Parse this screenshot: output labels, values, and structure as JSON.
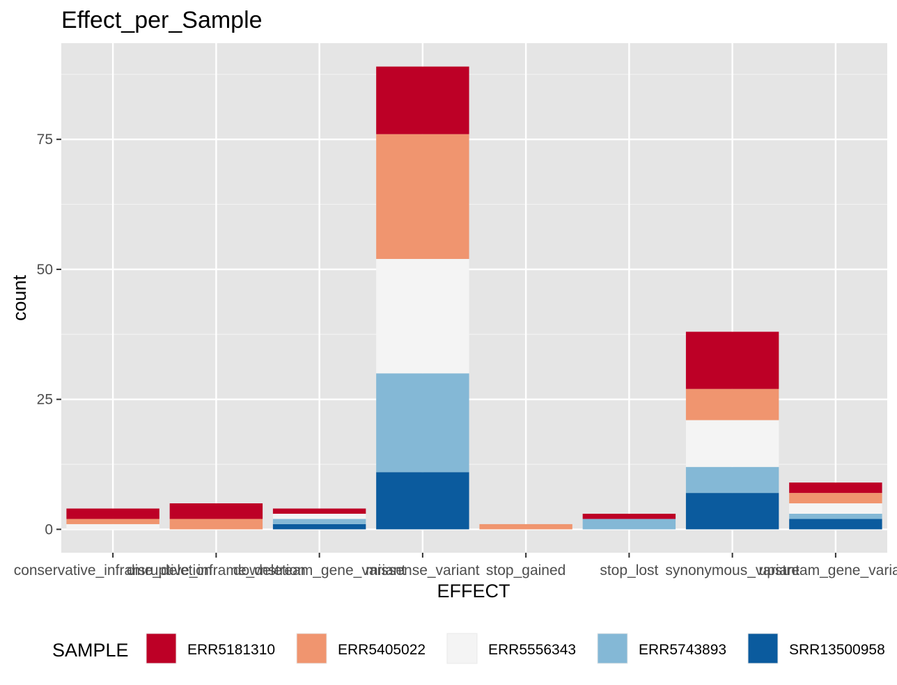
{
  "chart_data": {
    "type": "bar",
    "stacked": true,
    "title": "Effect_per_Sample",
    "xlabel": "EFFECT",
    "ylabel": "count",
    "ylim": [
      -4.5,
      93.5
    ],
    "yticks": [
      0,
      25,
      50,
      75
    ],
    "grid": true,
    "legend_position": "bottom",
    "legend_title": "SAMPLE",
    "categories": [
      "conservative_inframe_deletion",
      "disruptive_inframe_deletion",
      "downstream_gene_variant",
      "missense_variant",
      "stop_gained",
      "stop_lost",
      "synonymous_variant",
      "upstream_gene_variant"
    ],
    "series": [
      {
        "name": "ERR5181310",
        "color": "#bd0026",
        "values": [
          2,
          3,
          1,
          13,
          0,
          1,
          11,
          2
        ]
      },
      {
        "name": "ERR5405022",
        "color": "#f0956f",
        "values": [
          1,
          2,
          0,
          24,
          1,
          0,
          6,
          2
        ]
      },
      {
        "name": "ERR5556343",
        "color": "#f4f4f4",
        "values": [
          1,
          0,
          1,
          22,
          0,
          0,
          9,
          2
        ]
      },
      {
        "name": "ERR5743893",
        "color": "#84b8d6",
        "values": [
          0,
          0,
          1,
          19,
          0,
          2,
          5,
          1
        ]
      },
      {
        "name": "SRR13500958",
        "color": "#0b5b9e",
        "values": [
          0,
          0,
          1,
          11,
          0,
          0,
          7,
          2
        ]
      }
    ]
  }
}
